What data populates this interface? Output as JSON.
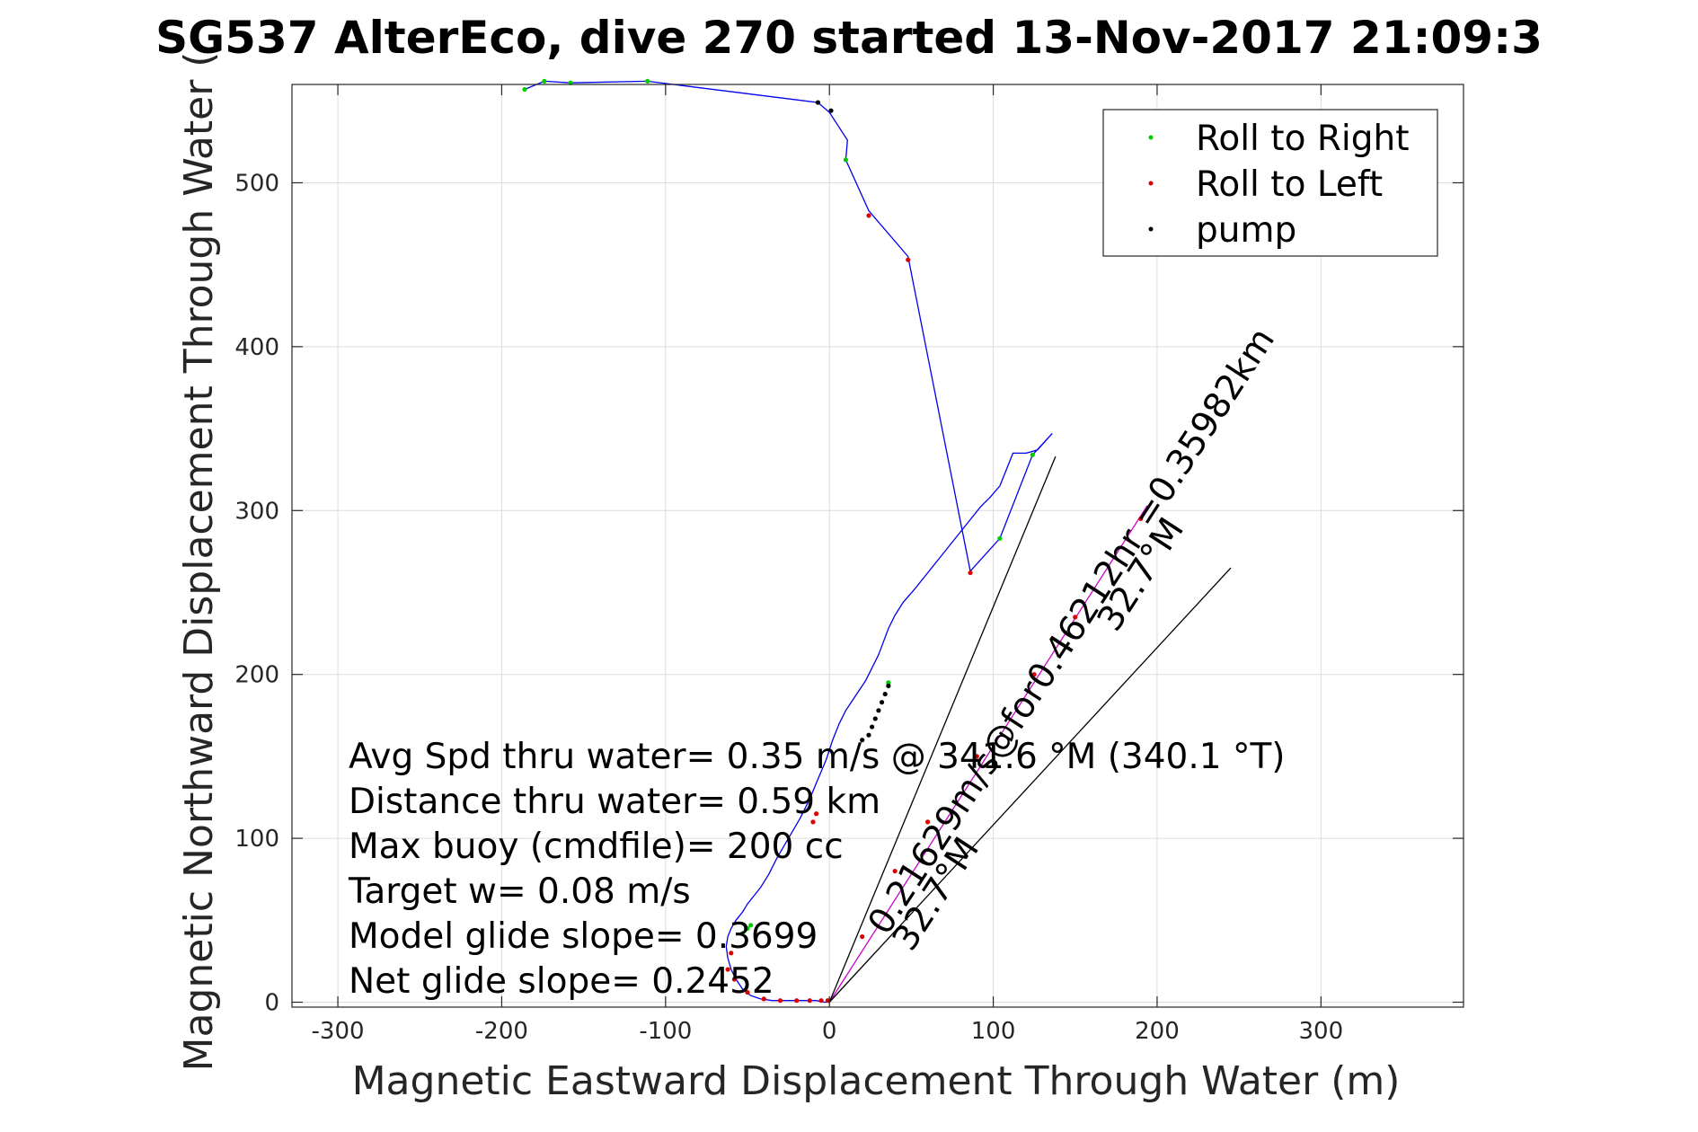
{
  "chart_data": {
    "type": "line",
    "title": "SG537 AlterEco, dive 270 started 13-Nov-2017 21:09:3",
    "xlabel": "Magnetic Eastward Displacement Through Water (m)",
    "ylabel": "Magnetic Northward Displacement Through Water (",
    "xlim": [
      -328,
      387
    ],
    "ylim": [
      -3,
      560
    ],
    "x_ticks": [
      -300,
      -200,
      -100,
      0,
      100,
      200,
      300
    ],
    "x_tick_labels": [
      "-300",
      "-200",
      "-100",
      "0",
      "100",
      "200",
      "300"
    ],
    "y_ticks": [
      0,
      100,
      200,
      300,
      400,
      500
    ],
    "y_tick_labels": [
      "0",
      "100",
      "200",
      "300",
      "400",
      "500"
    ],
    "grid": true,
    "legend_position": "top-right",
    "colors": {
      "track": "#0000ee",
      "roll_right": "#00cc00",
      "roll_left": "#dd0000",
      "pump": "#000000",
      "mean_track": "#cc00cc",
      "guide_lines": "#000000"
    },
    "legend": [
      {
        "label": "Roll to Right",
        "color": "#00cc00"
      },
      {
        "label": "Roll to Left",
        "color": "#dd0000"
      },
      {
        "label": "pump",
        "color": "#000000"
      }
    ],
    "series": [
      {
        "kind": "track",
        "x": [
          0,
          -3,
          -8,
          -15,
          -25,
          -35,
          -42,
          -48,
          -53,
          -57,
          -60,
          -62,
          -63,
          -62,
          -60,
          -57,
          -53,
          -50,
          -46,
          -42,
          -37,
          -32,
          -25,
          -18,
          -12,
          -7,
          -2,
          2,
          6,
          10,
          14,
          18,
          22,
          26,
          30,
          33,
          36,
          40,
          45,
          52,
          60,
          68,
          76,
          84,
          92,
          98,
          104,
          112,
          120,
          127,
          136,
          124,
          104,
          86,
          48,
          24,
          10,
          11,
          0,
          -7,
          -111,
          -158,
          -174,
          -186
        ],
        "y": [
          0,
          0,
          1,
          1,
          1,
          1,
          2,
          4,
          8,
          14,
          20,
          27,
          34,
          40,
          45,
          50,
          55,
          60,
          65,
          70,
          78,
          88,
          100,
          112,
          124,
          136,
          148,
          160,
          170,
          178,
          184,
          190,
          196,
          204,
          212,
          220,
          228,
          236,
          244,
          252,
          262,
          272,
          282,
          292,
          302,
          308,
          315,
          335,
          335,
          337,
          347,
          334,
          283,
          263,
          455,
          483,
          514,
          526,
          543,
          549,
          562,
          561,
          562,
          557
        ]
      },
      {
        "kind": "roll_right",
        "x": [
          -186,
          -174,
          -158,
          -111,
          10,
          36,
          104,
          124,
          -48,
          -50,
          -53
        ],
        "y": [
          557,
          562,
          561,
          562,
          514,
          195,
          283,
          334,
          47,
          45,
          42
        ],
        "points": [
          [
            -186,
            557
          ],
          [
            -174,
            562
          ],
          [
            -158,
            561
          ],
          [
            -111,
            562
          ],
          [
            10,
            514
          ],
          [
            36,
            195
          ],
          [
            104,
            283
          ],
          [
            124,
            334
          ],
          [
            -48,
            47
          ],
          [
            -50,
            45
          ],
          [
            -53,
            42
          ]
        ]
      },
      {
        "kind": "roll_left",
        "x": [
          24,
          48,
          86,
          -10,
          -8,
          -60,
          -62,
          -58,
          -50,
          -40,
          -30,
          -20,
          -12,
          -5,
          -1,
          20,
          40,
          60,
          90,
          125,
          150,
          190
        ],
        "y": [
          480,
          453,
          262,
          110,
          115,
          30,
          20,
          14,
          6,
          2,
          1,
          1,
          1,
          1,
          1,
          40,
          80,
          110,
          150,
          200,
          235,
          295
        ],
        "points": [
          [
            24,
            480
          ],
          [
            48,
            453
          ],
          [
            86,
            262
          ],
          [
            -10,
            110
          ],
          [
            -8,
            115
          ],
          [
            -60,
            30
          ],
          [
            -62,
            20
          ],
          [
            -58,
            14
          ],
          [
            -50,
            6
          ],
          [
            -40,
            2
          ],
          [
            -30,
            1
          ],
          [
            -20,
            1
          ],
          [
            -12,
            1
          ],
          [
            -5,
            1
          ],
          [
            -1,
            1
          ],
          [
            20,
            40
          ],
          [
            40,
            80
          ],
          [
            60,
            110
          ],
          [
            90,
            150
          ],
          [
            125,
            200
          ],
          [
            150,
            235
          ],
          [
            190,
            295
          ]
        ]
      },
      {
        "kind": "pump",
        "x": [
          -7,
          1,
          36,
          34,
          32,
          30,
          28,
          26,
          24,
          20
        ],
        "y": [
          549,
          544,
          193,
          188,
          183,
          178,
          173,
          168,
          163,
          160
        ],
        "points": [
          [
            -7,
            549
          ],
          [
            1,
            544
          ],
          [
            36,
            193
          ],
          [
            34,
            188
          ],
          [
            32,
            183
          ],
          [
            30,
            178
          ],
          [
            28,
            173
          ],
          [
            26,
            168
          ],
          [
            24,
            163
          ],
          [
            20,
            160
          ]
        ]
      },
      {
        "kind": "mean_track",
        "x": [
          0,
          194
        ],
        "y": [
          0,
          303
        ]
      },
      {
        "kind": "guide_line",
        "x": [
          0,
          138
        ],
        "y": [
          0,
          333
        ]
      },
      {
        "kind": "guide_line",
        "x": [
          0,
          245
        ],
        "y": [
          0,
          265
        ]
      }
    ],
    "annotations": {
      "stats": [
        "Avg Spd thru water=  0.35 m/s @ 341.6 °M (340.1 °T)",
        "Distance thru water=  0.59 km",
        "Max buoy (cmdfile)= 200 cc",
        "Target w= 0.08 m/s",
        "Model glide slope= 0.3699",
        "Net glide slope= 0.2452"
      ],
      "rotated": [
        {
          "text": "0.21629m/s@for0.46212hr =0.35982km",
          "x": 35,
          "y": 40,
          "angle": -57
        },
        {
          "text": "32.7°M",
          "x": 175,
          "y": 225,
          "angle": -57
        },
        {
          "text": "32.7°M",
          "x": 50,
          "y": 30,
          "angle": -57
        }
      ]
    }
  }
}
